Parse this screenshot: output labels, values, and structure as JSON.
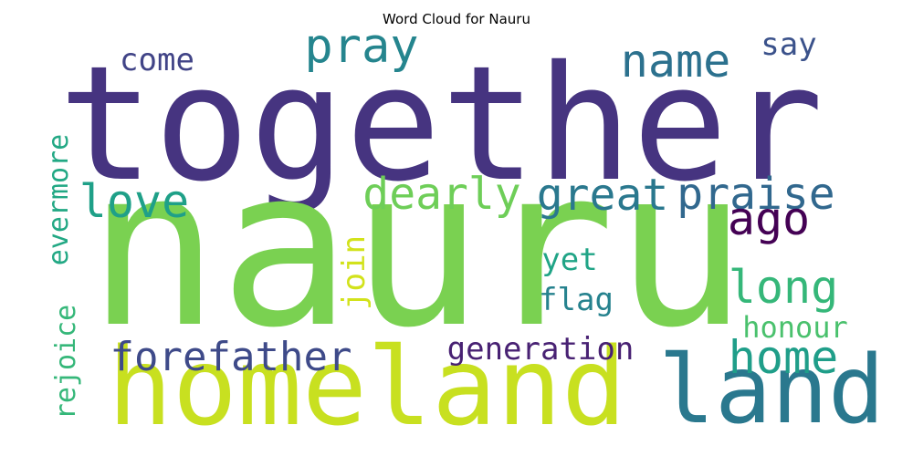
{
  "title": "Word Cloud for Nauru",
  "words": [
    {
      "text": "together",
      "color": "#463480"
    },
    {
      "text": "nauru",
      "color": "#7ad151"
    },
    {
      "text": "homeland",
      "color": "#c8e020"
    },
    {
      "text": "land",
      "color": "#2a788e"
    },
    {
      "text": "pray",
      "color": "#25858e"
    },
    {
      "text": "name",
      "color": "#2c718e"
    },
    {
      "text": "say",
      "color": "#3b528b"
    },
    {
      "text": "come",
      "color": "#414487"
    },
    {
      "text": "love",
      "color": "#1fa088"
    },
    {
      "text": "dearly",
      "color": "#6ece58"
    },
    {
      "text": "great",
      "color": "#2a788e"
    },
    {
      "text": "praise",
      "color": "#31688e"
    },
    {
      "text": "ago",
      "color": "#440154"
    },
    {
      "text": "evermore",
      "color": "#22a884"
    },
    {
      "text": "rejoice",
      "color": "#35b779"
    },
    {
      "text": "join",
      "color": "#d2e21b"
    },
    {
      "text": "yet",
      "color": "#20a486"
    },
    {
      "text": "long",
      "color": "#35b779"
    },
    {
      "text": "flag",
      "color": "#26828e"
    },
    {
      "text": "honour",
      "color": "#4ac16d"
    },
    {
      "text": "home",
      "color": "#1f9e89"
    },
    {
      "text": "forefather",
      "color": "#3e4a89"
    },
    {
      "text": "generation",
      "color": "#482173"
    }
  ]
}
